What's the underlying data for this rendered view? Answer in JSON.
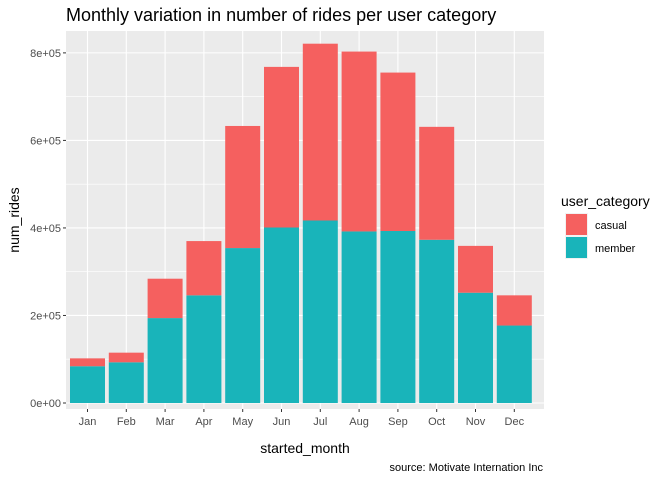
{
  "chart_data": {
    "type": "bar",
    "stacked": true,
    "title": "Monthly variation in number of rides per user category",
    "xlabel": "started_month",
    "ylabel": "num_rides",
    "caption": "source: Motivate Internation Inc",
    "categories": [
      "Jan",
      "Feb",
      "Mar",
      "Apr",
      "May",
      "Jun",
      "Jul",
      "Aug",
      "Sep",
      "Oct",
      "Nov",
      "Dec"
    ],
    "series": [
      {
        "name": "member",
        "color": "#19B4BA",
        "values": [
          84000,
          93000,
          194000,
          246000,
          354000,
          401000,
          417000,
          392000,
          393000,
          373000,
          252000,
          177000
        ]
      },
      {
        "name": "casual",
        "color": "#F5605F",
        "values": [
          18000,
          22000,
          90000,
          124000,
          279000,
          367000,
          404000,
          411000,
          362000,
          258000,
          107000,
          69000
        ]
      }
    ],
    "ylim": [
      0,
      850000
    ],
    "yticks": [
      0,
      200000,
      400000,
      600000,
      800000
    ],
    "ytick_labels": [
      "0e+00",
      "2e+05",
      "4e+05",
      "6e+05",
      "8e+05"
    ],
    "legend": {
      "title": "user_category",
      "entries": [
        "casual",
        "member"
      ],
      "placement": "right"
    },
    "grid": true,
    "panel_background": "#EBEBEB"
  }
}
